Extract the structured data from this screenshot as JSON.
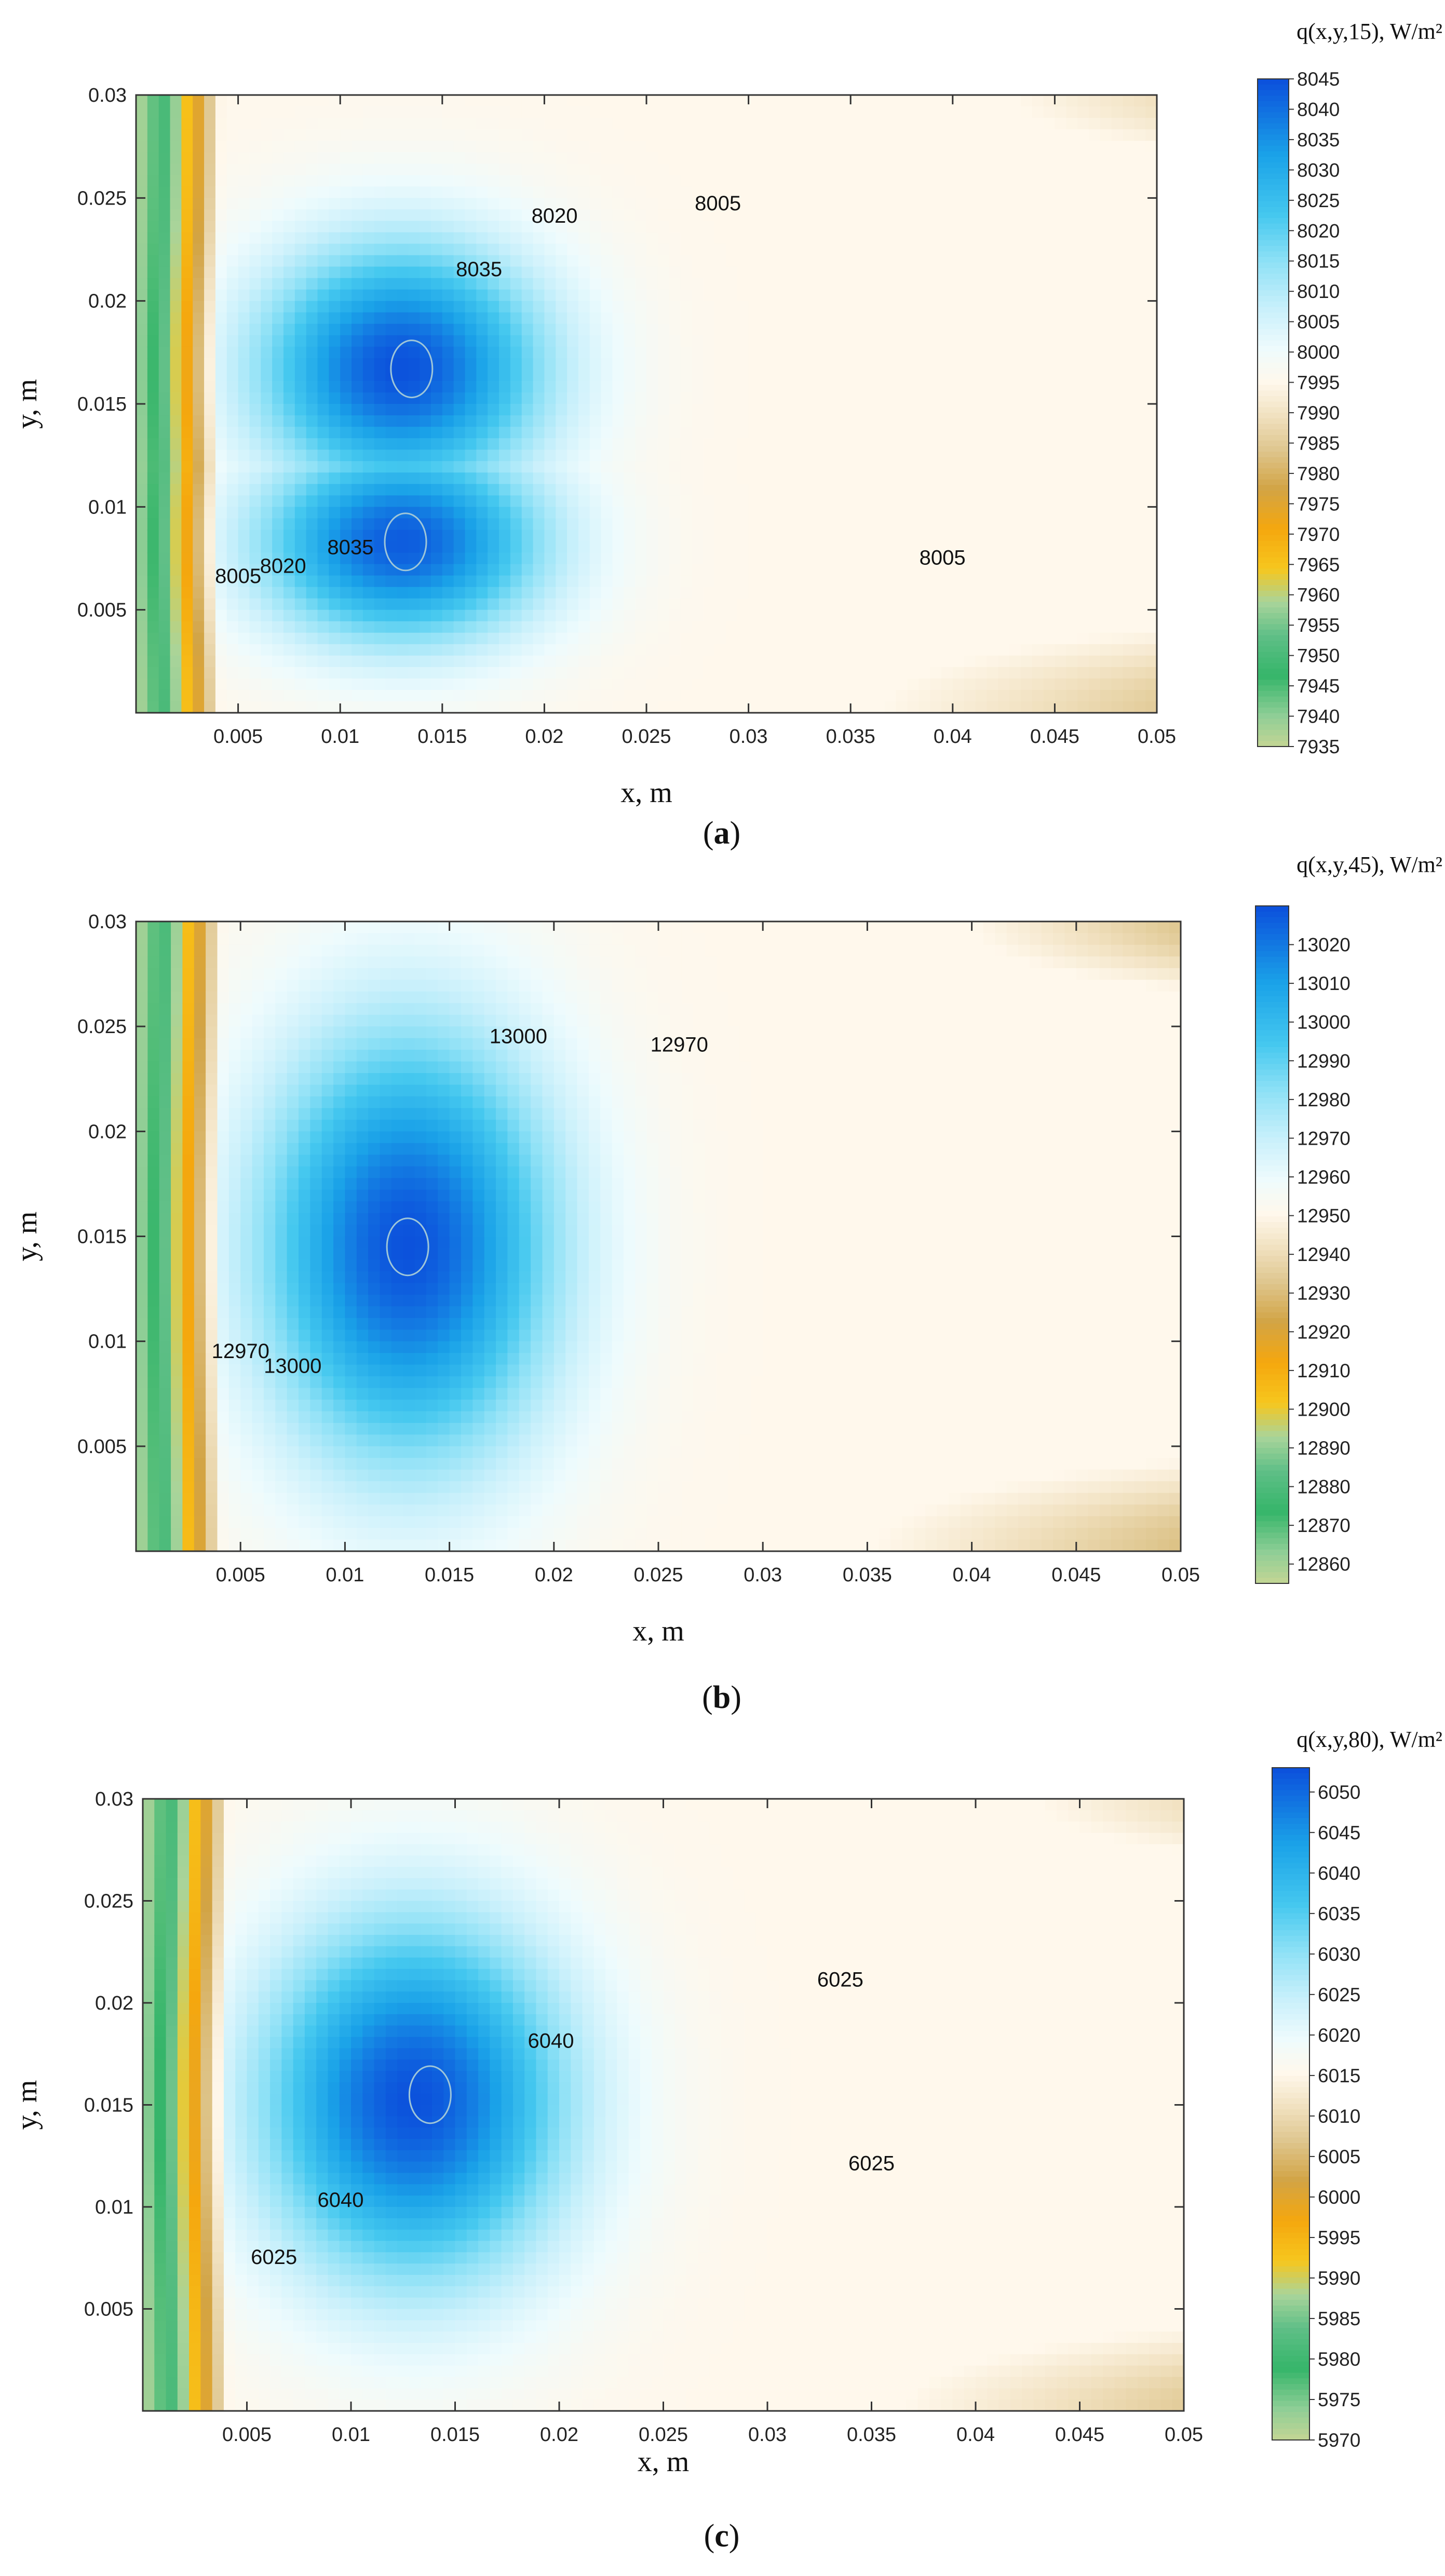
{
  "chart_data": [
    {
      "type": "heatmap",
      "panel": "(a)",
      "caption_open": "(",
      "caption_letter": "a",
      "caption_close": ")",
      "colorbar_title": "q(x,y,15), W/m²",
      "xlabel": "x, m",
      "ylabel": "y, m",
      "xlim": [
        0,
        0.05
      ],
      "ylim": [
        0,
        0.03
      ],
      "x_ticks": [
        "0.005",
        "0.01",
        "0.015",
        "0.02",
        "0.025",
        "0.03",
        "0.035",
        "0.04",
        "0.045",
        "0.05"
      ],
      "y_ticks": [
        "0.005",
        "0.01",
        "0.015",
        "0.02",
        "0.025",
        "0.03"
      ],
      "colorbar_range": [
        7935,
        8045
      ],
      "colorbar_ticks": [
        "8045",
        "8040",
        "8035",
        "8030",
        "8025",
        "8020",
        "8015",
        "8010",
        "8005",
        "8000",
        "7995",
        "7990",
        "7985",
        "7980",
        "7975",
        "7970",
        "7965",
        "7960",
        "7955",
        "7950",
        "7945",
        "7940",
        "7935"
      ],
      "contour_labels": [
        {
          "text": "8020",
          "x": 0.0205,
          "y": 0.0238
        },
        {
          "text": "8005",
          "x": 0.0285,
          "y": 0.0244
        },
        {
          "text": "8035",
          "x": 0.0168,
          "y": 0.0212
        },
        {
          "text": "8035",
          "x": 0.0105,
          "y": 0.0077
        },
        {
          "text": "8020",
          "x": 0.0072,
          "y": 0.0068
        },
        {
          "text": "8005",
          "x": 0.005,
          "y": 0.0063
        },
        {
          "text": "8005",
          "x": 0.0395,
          "y": 0.0072
        }
      ],
      "field_features": [
        {
          "kind": "max",
          "value": 8045,
          "x": 0.0135,
          "y": 0.0167
        },
        {
          "kind": "max",
          "value": 8043,
          "x": 0.0132,
          "y": 0.0083
        },
        {
          "kind": "min",
          "value": 7935,
          "x": 0.0005,
          "y": 0.015
        }
      ]
    },
    {
      "type": "heatmap",
      "panel": "(b)",
      "caption_open": "(",
      "caption_letter": "b",
      "caption_close": ")",
      "colorbar_title": "q(x,y,45), W/m²",
      "xlabel": "x, m",
      "ylabel": "y, m",
      "xlim": [
        0,
        0.05
      ],
      "ylim": [
        0,
        0.03
      ],
      "x_ticks": [
        "0.005",
        "0.01",
        "0.015",
        "0.02",
        "0.025",
        "0.03",
        "0.035",
        "0.04",
        "0.045",
        "0.05"
      ],
      "y_ticks": [
        "0.005",
        "0.01",
        "0.015",
        "0.02",
        "0.025",
        "0.03"
      ],
      "colorbar_range": [
        12855,
        13030
      ],
      "colorbar_ticks": [
        "13020",
        "13010",
        "13000",
        "12990",
        "12980",
        "12970",
        "12960",
        "12950",
        "12940",
        "12930",
        "12920",
        "12910",
        "12900",
        "12890",
        "12880",
        "12870",
        "12860"
      ],
      "contour_labels": [
        {
          "text": "13000",
          "x": 0.0183,
          "y": 0.0242
        },
        {
          "text": "12970",
          "x": 0.026,
          "y": 0.0238
        },
        {
          "text": "12970",
          "x": 0.005,
          "y": 0.0092
        },
        {
          "text": "13000",
          "x": 0.0075,
          "y": 0.0085
        }
      ],
      "field_features": [
        {
          "kind": "max",
          "value": 13025,
          "x": 0.013,
          "y": 0.0145
        },
        {
          "kind": "min",
          "value": 12860,
          "x": 0.0005,
          "y": 0.015
        }
      ]
    },
    {
      "type": "heatmap",
      "panel": "(c)",
      "caption_open": "(",
      "caption_letter": "c",
      "caption_close": ")",
      "colorbar_title": "q(x,y,80), W/m²",
      "xlabel": "x, m",
      "ylabel": "y, m",
      "xlim": [
        0,
        0.05
      ],
      "ylim": [
        0,
        0.03
      ],
      "x_ticks": [
        "0.005",
        "0.01",
        "0.015",
        "0.02",
        "0.025",
        "0.03",
        "0.035",
        "0.04",
        "0.045",
        "0.05"
      ],
      "y_ticks": [
        "0.005",
        "0.01",
        "0.015",
        "0.02",
        "0.025",
        "0.03"
      ],
      "colorbar_range": [
        5970,
        6053
      ],
      "colorbar_ticks": [
        "6050",
        "6045",
        "6040",
        "6035",
        "6030",
        "6025",
        "6020",
        "6015",
        "6010",
        "6005",
        "6000",
        "5995",
        "5990",
        "5985",
        "5980",
        "5975",
        "5970"
      ],
      "contour_labels": [
        {
          "text": "6025",
          "x": 0.0335,
          "y": 0.0208
        },
        {
          "text": "6040",
          "x": 0.0196,
          "y": 0.0178
        },
        {
          "text": "6025",
          "x": 0.035,
          "y": 0.0118
        },
        {
          "text": "6040",
          "x": 0.0095,
          "y": 0.01
        },
        {
          "text": "6025",
          "x": 0.0063,
          "y": 0.0072
        }
      ],
      "field_features": [
        {
          "kind": "max",
          "value": 6052,
          "x": 0.0138,
          "y": 0.0155
        },
        {
          "kind": "min",
          "value": 5970,
          "x": 0.0005,
          "y": 0.015
        }
      ]
    }
  ]
}
